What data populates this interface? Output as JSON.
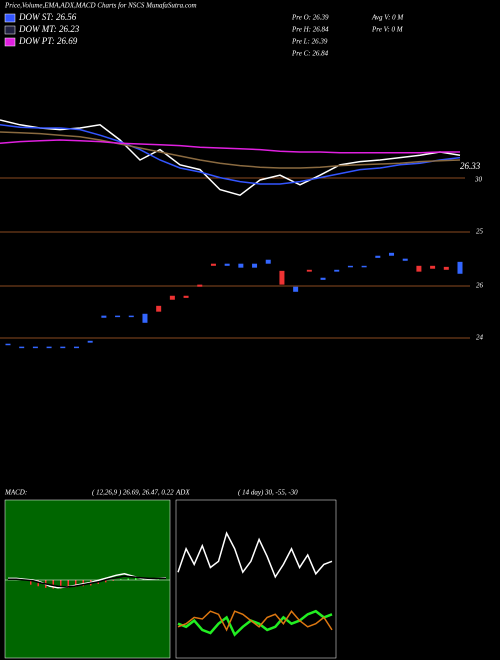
{
  "header": {
    "title": "Price,Volume,EMA,ADX,MACD Charts for NSCS MunafaSutra.com",
    "legend": [
      {
        "label": "DOW ST: 26.56",
        "color": "#3355ff"
      },
      {
        "label": "DOW MT: 26.23",
        "color": "#202040"
      },
      {
        "label": "DOW PT: 26.69",
        "color": "#e020e0"
      }
    ],
    "stats": [
      "Pre  O: 26.39",
      "Pre  H: 26.84",
      "Pre  L: 26.39",
      "Pre  C: 26.84",
      "Avg V: 0  M",
      "Pre  V: 0  M"
    ]
  },
  "price_panel": {
    "ylim": [
      25.5,
      27.5
    ],
    "labels": [
      "26.33",
      "30"
    ],
    "series": [
      {
        "color": "#ffffff",
        "values": [
          26.75,
          26.69,
          26.65,
          26.63,
          26.65,
          26.69,
          26.5,
          26.25,
          26.38,
          26.19,
          26.13,
          25.88,
          25.81,
          26.0,
          26.06,
          25.94,
          26.06,
          26.19,
          26.23,
          26.25,
          26.28,
          26.31,
          26.35,
          26.31
        ]
      },
      {
        "color": "#3355ff",
        "values": [
          26.69,
          26.66,
          26.65,
          26.65,
          26.63,
          26.56,
          26.48,
          26.38,
          26.25,
          26.15,
          26.1,
          26.03,
          25.98,
          25.95,
          25.95,
          25.98,
          26.03,
          26.08,
          26.13,
          26.15,
          26.19,
          26.21,
          26.25,
          26.28
        ]
      },
      {
        "color": "#8a6a40",
        "values": [
          26.6,
          26.59,
          26.58,
          26.56,
          26.54,
          26.5,
          26.45,
          26.4,
          26.35,
          26.3,
          26.25,
          26.21,
          26.18,
          26.16,
          26.15,
          26.15,
          26.16,
          26.18,
          26.19,
          26.2,
          26.21,
          26.23,
          26.24,
          26.25
        ]
      },
      {
        "color": "#e020e0",
        "values": [
          26.46,
          26.48,
          26.49,
          26.5,
          26.49,
          26.48,
          26.46,
          26.45,
          26.44,
          26.43,
          26.41,
          26.4,
          26.39,
          26.38,
          26.36,
          26.35,
          26.35,
          26.34,
          26.34,
          26.34,
          26.34,
          26.34,
          26.35,
          26.35
        ]
      }
    ]
  },
  "candle_panel": {
    "ylim": [
      23.5,
      27.5
    ],
    "labels": [
      "25",
      "26",
      "24"
    ],
    "up_color": "#3366ff",
    "down_color": "#ee3333",
    "open": [
      23.81,
      23.7,
      23.72,
      23.72,
      23.72,
      23.72,
      23.89,
      24.83,
      24.88,
      24.88,
      24.64,
      25.28,
      25.66,
      25.66,
      26.08,
      26.87,
      26.79,
      26.72,
      26.72,
      26.87,
      26.6,
      25.81,
      26.64,
      26.26,
      26.57,
      26.76,
      26.76,
      27.09,
      27.17,
      26.98,
      26.79,
      26.79,
      26.75,
      26.49
    ],
    "close": [
      23.85,
      23.74,
      23.74,
      23.74,
      23.74,
      23.74,
      23.96,
      24.91,
      24.91,
      24.91,
      24.98,
      25.06,
      25.51,
      25.58,
      26.0,
      26.79,
      26.87,
      26.87,
      26.87,
      27.02,
      26.08,
      26.0,
      26.57,
      26.34,
      26.64,
      26.79,
      26.79,
      27.17,
      27.28,
      27.06,
      26.57,
      26.68,
      26.64,
      26.94
    ]
  },
  "macd": {
    "title": "MACD:",
    "params": "( 12,26,9 ) 26.69, 26.47, 0.22",
    "ylim": [
      -1,
      1
    ],
    "series": [
      {
        "color": "#ffffff",
        "values": [
          0.02,
          0.02,
          0.01,
          0.0,
          -0.03,
          -0.08,
          -0.1,
          -0.09,
          -0.07,
          -0.05,
          -0.03,
          0,
          0.03,
          0.06,
          0.08,
          0.05,
          0.02,
          0.01,
          0.02,
          0.03
        ]
      },
      {
        "color": "#000000",
        "values": [
          0.01,
          0.01,
          0.0,
          -0.01,
          -0.04,
          -0.06,
          -0.08,
          -0.09,
          -0.08,
          -0.06,
          -0.04,
          -0.02,
          0.01,
          0.03,
          0.05,
          0.04,
          0.03,
          0.02,
          0.02,
          0.02
        ]
      }
    ],
    "histogram": [
      -0.06,
      -0.08,
      -0.1,
      -0.11,
      -0.11,
      -0.1,
      -0.09,
      -0.08,
      -0.07,
      -0.05,
      -0.03,
      -0.01,
      0.01,
      0.02,
      0.03,
      0.02,
      0.01,
      0.01
    ]
  },
  "adx": {
    "title": "ADX",
    "params": "( 14 day) 30, -55, -30",
    "ylim": [
      0,
      100
    ],
    "series": [
      {
        "color": "#ffffff",
        "values": [
          55,
          70,
          60,
          72,
          58,
          62,
          80,
          70,
          55,
          62,
          76,
          65,
          52,
          60,
          70,
          58,
          66,
          54,
          60,
          62
        ]
      },
      {
        "color": "#22ee22",
        "values": [
          22,
          20,
          24,
          18,
          16,
          22,
          26,
          15,
          20,
          24,
          22,
          18,
          20,
          26,
          22,
          24,
          28,
          30,
          26,
          28
        ]
      },
      {
        "color": "#dd7711",
        "values": [
          20,
          22,
          26,
          25,
          30,
          28,
          18,
          30,
          28,
          24,
          20,
          26,
          28,
          22,
          30,
          24,
          20,
          22,
          26,
          18
        ]
      }
    ]
  }
}
